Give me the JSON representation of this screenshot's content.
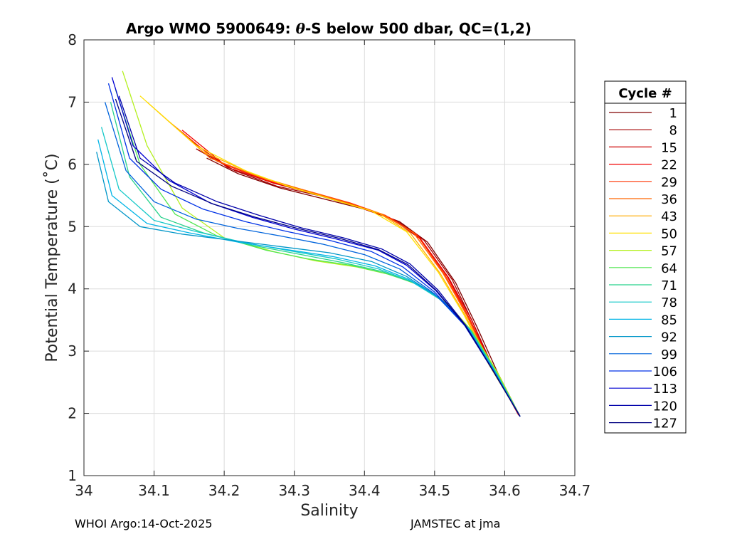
{
  "chart_data": {
    "type": "line",
    "title_prefix": "Argo WMO 5900649: ",
    "title_theta": "θ",
    "title_suffix": "-S below 500 dbar,  QC=(1,2)",
    "xlabel": "Salinity",
    "ylabel": "Potential Temperature (˚C)",
    "xlim": [
      34.0,
      34.7
    ],
    "ylim": [
      1,
      8
    ],
    "x_ticks": [
      34.0,
      34.1,
      34.2,
      34.3,
      34.4,
      34.5,
      34.6,
      34.7
    ],
    "x_tick_labels": [
      "34",
      "34.1",
      "34.2",
      "34.3",
      "34.4",
      "34.5",
      "34.6",
      "34.7"
    ],
    "y_ticks": [
      1,
      2,
      3,
      4,
      5,
      6,
      7,
      8
    ],
    "y_tick_labels": [
      "1",
      "2",
      "3",
      "4",
      "5",
      "6",
      "7",
      "8"
    ],
    "grid": true,
    "legend_title": "Cycle #",
    "legend_position": "outside-right",
    "series": [
      {
        "name": "1",
        "color": "#800000",
        "salinity": [
          34.175,
          34.22,
          34.28,
          34.34,
          34.4,
          34.45,
          34.49,
          34.53,
          34.56,
          34.59,
          34.622
        ],
        "theta": [
          6.1,
          5.85,
          5.62,
          5.45,
          5.28,
          5.08,
          4.75,
          4.1,
          3.4,
          2.65,
          1.95
        ]
      },
      {
        "name": "8",
        "color": "#a50000",
        "salinity": [
          34.16,
          34.215,
          34.275,
          34.335,
          34.395,
          34.445,
          34.485,
          34.525,
          34.555,
          34.585,
          34.62
        ],
        "theta": [
          6.25,
          5.9,
          5.65,
          5.5,
          5.3,
          5.1,
          4.78,
          4.15,
          3.45,
          2.7,
          1.97
        ]
      },
      {
        "name": "15",
        "color": "#cc0000",
        "salinity": [
          34.15,
          34.205,
          34.27,
          34.33,
          34.39,
          34.44,
          34.48,
          34.52,
          34.553,
          34.583,
          34.62
        ],
        "theta": [
          6.4,
          5.95,
          5.7,
          5.52,
          5.32,
          5.12,
          4.8,
          4.18,
          3.5,
          2.72,
          1.97
        ]
      },
      {
        "name": "22",
        "color": "#f20000",
        "salinity": [
          34.14,
          34.2,
          34.265,
          34.325,
          34.385,
          34.435,
          34.477,
          34.518,
          34.55,
          34.582,
          34.62
        ],
        "theta": [
          6.55,
          6.0,
          5.72,
          5.55,
          5.35,
          5.15,
          4.85,
          4.2,
          3.52,
          2.75,
          1.98
        ]
      },
      {
        "name": "29",
        "color": "#ff3300",
        "salinity": [
          34.12,
          34.19,
          34.26,
          34.32,
          34.38,
          34.43,
          34.474,
          34.515,
          34.548,
          34.58,
          34.62
        ],
        "theta": [
          6.7,
          6.05,
          5.75,
          5.57,
          5.38,
          5.18,
          4.88,
          4.22,
          3.55,
          2.77,
          1.98
        ]
      },
      {
        "name": "36",
        "color": "#ff6600",
        "salinity": [
          34.105,
          34.18,
          34.25,
          34.31,
          34.37,
          34.425,
          34.47,
          34.512,
          34.546,
          34.579,
          34.62
        ],
        "theta": [
          6.85,
          6.1,
          5.8,
          5.6,
          5.4,
          5.2,
          4.9,
          4.25,
          3.57,
          2.78,
          1.99
        ]
      },
      {
        "name": "43",
        "color": "#ffaa00",
        "salinity": [
          34.09,
          34.17,
          34.24,
          34.3,
          34.36,
          34.42,
          34.465,
          34.508,
          34.544,
          34.578,
          34.62
        ],
        "theta": [
          7.0,
          6.2,
          5.85,
          5.62,
          5.42,
          5.22,
          4.9,
          4.25,
          3.57,
          2.78,
          1.99
        ]
      },
      {
        "name": "50",
        "color": "#ffe000",
        "salinity": [
          34.08,
          34.16,
          34.23,
          34.29,
          34.35,
          34.41,
          34.46,
          34.505,
          34.542,
          34.577,
          34.62
        ],
        "theta": [
          7.1,
          6.3,
          5.9,
          5.65,
          5.45,
          5.25,
          4.92,
          4.27,
          3.58,
          2.79,
          1.99
        ]
      },
      {
        "name": "57",
        "color": "#b4f01e",
        "salinity": [
          34.055,
          34.09,
          34.14,
          34.2,
          34.27,
          34.33,
          34.39,
          34.44,
          34.48,
          34.52,
          34.555,
          34.59,
          34.622
        ],
        "theta": [
          7.5,
          6.3,
          5.3,
          4.82,
          4.6,
          4.45,
          4.35,
          4.22,
          4.05,
          3.75,
          3.3,
          2.65,
          1.95
        ]
      },
      {
        "name": "64",
        "color": "#50e650",
        "salinity": [
          34.045,
          34.08,
          34.13,
          34.19,
          34.26,
          34.32,
          34.38,
          34.43,
          34.475,
          34.515,
          34.553,
          34.588,
          34.622
        ],
        "theta": [
          7.2,
          6.0,
          5.2,
          4.85,
          4.62,
          4.48,
          4.38,
          4.25,
          4.08,
          3.78,
          3.32,
          2.66,
          1.95
        ]
      },
      {
        "name": "71",
        "color": "#28d28c",
        "salinity": [
          34.038,
          34.065,
          34.11,
          34.17,
          34.24,
          34.31,
          34.37,
          34.425,
          34.47,
          34.512,
          34.551,
          34.587,
          34.622
        ],
        "theta": [
          7.0,
          5.8,
          5.15,
          4.9,
          4.7,
          4.55,
          4.42,
          4.28,
          4.1,
          3.8,
          3.33,
          2.67,
          1.95
        ]
      },
      {
        "name": "78",
        "color": "#14c8c8",
        "salinity": [
          34.025,
          34.05,
          34.1,
          34.16,
          34.23,
          34.3,
          34.36,
          34.42,
          34.465,
          34.51,
          34.55,
          34.586,
          34.622
        ],
        "theta": [
          6.6,
          5.6,
          5.1,
          4.92,
          4.74,
          4.6,
          4.48,
          4.32,
          4.13,
          3.82,
          3.35,
          2.68,
          1.95
        ]
      },
      {
        "name": "85",
        "color": "#00b4e6",
        "salinity": [
          34.02,
          34.04,
          34.09,
          34.15,
          34.22,
          34.29,
          34.355,
          34.415,
          34.462,
          34.508,
          34.548,
          34.585,
          34.622
        ],
        "theta": [
          6.4,
          5.5,
          5.05,
          4.9,
          4.75,
          4.63,
          4.52,
          4.37,
          4.16,
          3.85,
          3.37,
          2.69,
          1.95
        ]
      },
      {
        "name": "92",
        "color": "#0096c8",
        "salinity": [
          34.018,
          34.035,
          34.08,
          34.14,
          34.21,
          34.28,
          34.35,
          34.41,
          34.46,
          34.505,
          34.546,
          34.584,
          34.622
        ],
        "theta": [
          6.2,
          5.4,
          5.0,
          4.88,
          4.78,
          4.68,
          4.58,
          4.44,
          4.2,
          3.87,
          3.38,
          2.7,
          1.95
        ]
      },
      {
        "name": "99",
        "color": "#0064dc",
        "salinity": [
          34.03,
          34.06,
          34.1,
          34.16,
          34.22,
          34.28,
          34.34,
          34.4,
          34.45,
          34.5,
          34.544,
          34.583,
          34.622
        ],
        "theta": [
          7.0,
          5.9,
          5.4,
          5.12,
          4.97,
          4.85,
          4.72,
          4.55,
          4.32,
          3.92,
          3.4,
          2.7,
          1.95
        ]
      },
      {
        "name": "106",
        "color": "#0032e6",
        "salinity": [
          34.035,
          34.065,
          34.11,
          34.17,
          34.23,
          34.29,
          34.35,
          34.41,
          34.455,
          34.5,
          34.543,
          34.582,
          34.622
        ],
        "theta": [
          7.3,
          6.1,
          5.6,
          5.28,
          5.08,
          4.92,
          4.78,
          4.6,
          4.35,
          3.95,
          3.41,
          2.71,
          1.95
        ]
      },
      {
        "name": "113",
        "color": "#0000d2",
        "salinity": [
          34.04,
          34.07,
          34.12,
          34.18,
          34.24,
          34.3,
          34.36,
          34.42,
          34.46,
          34.502,
          34.543,
          34.582,
          34.622
        ],
        "theta": [
          7.4,
          6.3,
          5.75,
          5.38,
          5.15,
          4.96,
          4.8,
          4.62,
          4.38,
          3.97,
          3.42,
          2.71,
          1.95
        ]
      },
      {
        "name": "120",
        "color": "#0000aa",
        "salinity": [
          34.05,
          34.08,
          34.13,
          34.19,
          34.25,
          34.31,
          34.37,
          34.425,
          34.465,
          34.505,
          34.544,
          34.582,
          34.622
        ],
        "theta": [
          7.1,
          6.1,
          5.7,
          5.4,
          5.18,
          4.98,
          4.82,
          4.64,
          4.4,
          3.98,
          3.42,
          2.71,
          1.95
        ]
      },
      {
        "name": "127",
        "color": "#000080",
        "salinity": [
          34.045,
          34.075,
          34.125,
          34.185,
          34.245,
          34.305,
          34.365,
          34.42,
          34.462,
          34.503,
          34.543,
          34.582,
          34.622
        ],
        "theta": [
          7.05,
          6.05,
          5.65,
          5.36,
          5.15,
          4.97,
          4.81,
          4.63,
          4.39,
          3.97,
          3.42,
          2.71,
          1.95
        ]
      }
    ]
  },
  "footer": {
    "left": "WHOI Argo:14-Oct-2025",
    "right": "JAMSTEC at jma"
  }
}
